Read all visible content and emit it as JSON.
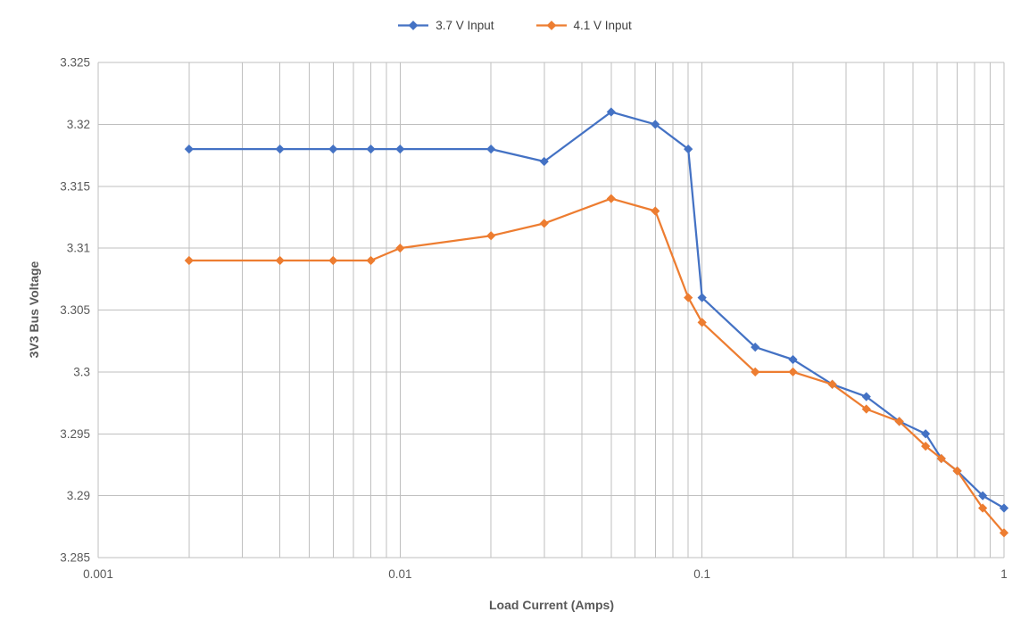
{
  "colors": {
    "background": "#FFFFFF",
    "grid": "#BFBFBF",
    "tick_text": "#595959",
    "axis_title_text": "#595959",
    "legend_text": "#404040",
    "series_blue": "#4472C4",
    "series_orange": "#ED7D31"
  },
  "chart_data": {
    "type": "line",
    "title": "",
    "xlabel": "Load Current (Amps)",
    "ylabel": "3V3 Bus Voltage",
    "x_scale": "log",
    "xlim": [
      0.001,
      1
    ],
    "ylim": [
      3.285,
      3.325
    ],
    "x_ticks": [
      "0.001",
      "0.01",
      "0.1",
      "1"
    ],
    "y_ticks": [
      "3.285",
      "3.29",
      "3.295",
      "3.3",
      "3.305",
      "3.31",
      "3.315",
      "3.32",
      "3.325"
    ],
    "grid": "major-and-minor-log-verticals, major-horizontals",
    "legend_position": "top-center",
    "marker": "diamond",
    "x": [
      0.002,
      0.004,
      0.006,
      0.008,
      0.01,
      0.02,
      0.03,
      0.05,
      0.07,
      0.09,
      0.1,
      0.15,
      0.2,
      0.27,
      0.35,
      0.45,
      0.55,
      0.62,
      0.7,
      0.85,
      1.0
    ],
    "series": [
      {
        "name": "3.7 V Input",
        "color": "#4472C4",
        "values": [
          3.318,
          3.318,
          3.318,
          3.318,
          3.318,
          3.318,
          3.317,
          3.321,
          3.32,
          3.318,
          3.306,
          3.302,
          3.301,
          3.299,
          3.298,
          3.296,
          3.295,
          3.293,
          3.292,
          3.29,
          3.289
        ]
      },
      {
        "name": "4.1 V Input",
        "color": "#ED7D31",
        "values": [
          3.309,
          3.309,
          3.309,
          3.309,
          3.31,
          3.311,
          3.312,
          3.314,
          3.313,
          3.306,
          3.304,
          3.3,
          3.3,
          3.299,
          3.297,
          3.296,
          3.294,
          3.293,
          3.292,
          3.289,
          3.287
        ]
      }
    ]
  }
}
